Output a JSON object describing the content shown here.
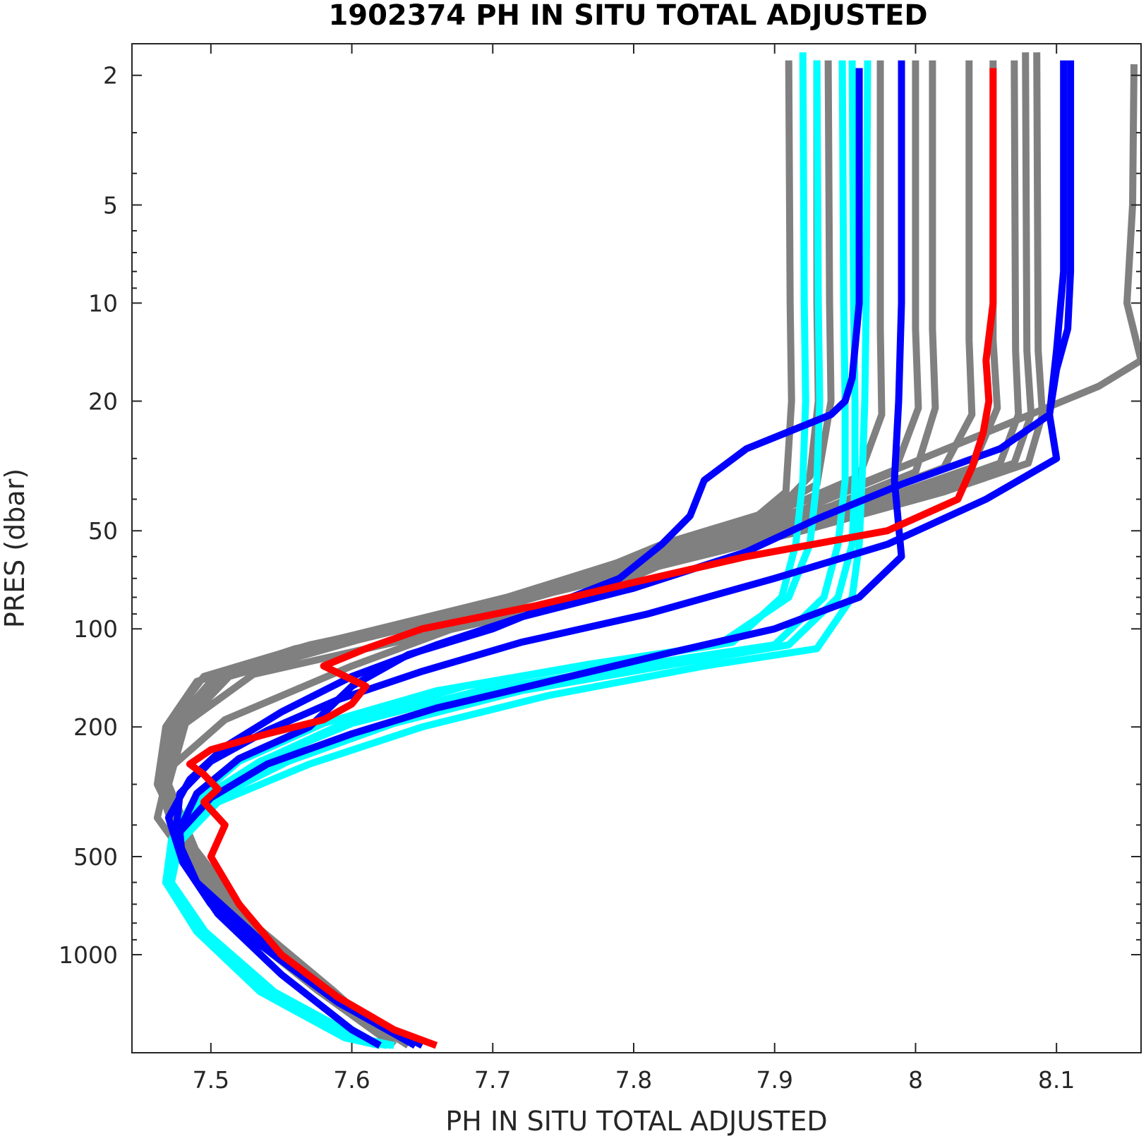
{
  "chart_data": {
    "type": "line",
    "title": "1902374  PH IN SITU TOTAL ADJUSTED",
    "xlabel": "PH IN SITU TOTAL ADJUSTED",
    "ylabel": "PRES (dbar)",
    "xlim": [
      7.444,
      8.16
    ],
    "ylim": [
      1.6,
      2000
    ],
    "y_scale": "log",
    "y_reversed": true,
    "grid": false,
    "x_ticks": [
      7.5,
      7.6,
      7.7,
      7.8,
      7.9,
      8.0,
      8.1
    ],
    "x_tick_labels": [
      "7.5",
      "7.6",
      "7.7",
      "7.8",
      "7.9",
      "8",
      "8.1"
    ],
    "y_ticks": [
      2,
      5,
      10,
      20,
      50,
      100,
      200,
      500,
      1000
    ],
    "y_tick_labels": [
      "2",
      "5",
      "10",
      "20",
      "50",
      "100",
      "200",
      "500",
      "1000"
    ],
    "colors": {
      "gray": "#808080",
      "cyan": "#00ffff",
      "blue": "#0000ff",
      "red": "#ff0000"
    },
    "series": [
      {
        "color": "gray",
        "x": [
          7.91,
          7.911,
          7.912,
          7.908,
          7.88,
          7.83,
          7.69,
          7.56,
          7.49,
          7.468,
          7.462,
          7.485,
          7.52,
          7.58,
          7.64
        ],
        "y": [
          1.8,
          10,
          20,
          38,
          48,
          60,
          90,
          115,
          145,
          200,
          300,
          480,
          800,
          1300,
          1900
        ]
      },
      {
        "color": "gray",
        "x": [
          7.938,
          7.939,
          7.94,
          7.93,
          7.89,
          7.82,
          7.7,
          7.57,
          7.495,
          7.47,
          7.463,
          7.478,
          7.515,
          7.575,
          7.63
        ],
        "y": [
          1.8,
          10,
          20,
          36,
          45,
          58,
          85,
          112,
          140,
          195,
          300,
          470,
          780,
          1280,
          1900
        ]
      },
      {
        "color": "gray",
        "x": [
          7.975,
          7.975,
          7.976,
          7.96,
          7.9,
          7.83,
          7.71,
          7.58,
          7.5,
          7.472,
          7.464,
          7.482,
          7.52,
          7.58,
          7.63
        ],
        "y": [
          1.8,
          12,
          22,
          34,
          44,
          55,
          80,
          110,
          145,
          200,
          305,
          470,
          790,
          1290,
          1900
        ]
      },
      {
        "color": "gray",
        "x": [
          8.012,
          8.012,
          8.014,
          8.0,
          7.94,
          7.86,
          7.72,
          7.59,
          7.505,
          7.474,
          7.466,
          7.484,
          7.522,
          7.582,
          7.63
        ],
        "y": [
          1.8,
          12,
          21,
          33,
          42,
          54,
          80,
          108,
          138,
          200,
          300,
          475,
          790,
          1290,
          1900
        ]
      },
      {
        "color": "gray",
        "x": [
          8.038,
          8.038,
          8.04,
          8.02,
          7.96,
          7.87,
          7.73,
          7.59,
          7.505,
          7.475,
          7.466,
          7.486,
          7.524,
          7.584,
          7.63
        ],
        "y": [
          1.8,
          13,
          22,
          32,
          40,
          52,
          78,
          108,
          138,
          200,
          300,
          475,
          790,
          1290,
          1900
        ]
      },
      {
        "color": "gray",
        "x": [
          8.055,
          8.055,
          8.058,
          8.04,
          7.975,
          7.88,
          7.735,
          7.595,
          7.508,
          7.476,
          7.467,
          7.486,
          7.525,
          7.585,
          7.63
        ],
        "y": [
          1.8,
          13,
          21,
          32,
          40,
          52,
          78,
          110,
          140,
          200,
          300,
          475,
          790,
          1290,
          1900
        ]
      },
      {
        "color": "gray",
        "x": [
          8.07,
          8.071,
          8.073,
          8.06,
          7.995,
          7.9,
          7.745,
          7.6,
          7.51,
          7.477,
          7.468,
          7.488,
          7.526,
          7.585,
          7.63
        ],
        "y": [
          1.8,
          14,
          22,
          31,
          39,
          50,
          75,
          108,
          140,
          200,
          300,
          475,
          790,
          1290,
          1900
        ]
      },
      {
        "color": "gray",
        "x": [
          8.078,
          8.079,
          8.082,
          8.07,
          8.01,
          7.91,
          7.75,
          7.6,
          7.512,
          7.478,
          7.469,
          7.488,
          7.527,
          7.586,
          7.63
        ],
        "y": [
          1.7,
          14,
          22,
          31,
          38,
          50,
          75,
          108,
          140,
          200,
          300,
          475,
          790,
          1290,
          1900
        ]
      },
      {
        "color": "gray",
        "x": [
          8.086,
          8.087,
          8.09,
          8.08,
          8.02,
          7.92,
          7.755,
          7.605,
          7.513,
          7.479,
          7.47,
          7.489,
          7.528,
          7.587,
          7.63
        ],
        "y": [
          1.7,
          14,
          22,
          31,
          38,
          50,
          75,
          108,
          140,
          200,
          300,
          475,
          790,
          1290,
          1900
        ]
      },
      {
        "color": "gray",
        "x": [
          8.155,
          8.154,
          8.15,
          8.16,
          8.13,
          8.06,
          7.96,
          7.82,
          7.7,
          7.6,
          7.51,
          7.47,
          7.462,
          7.482,
          7.52,
          7.58,
          7.63
        ],
        "y": [
          1.85,
          5,
          10,
          15,
          18,
          24,
          36,
          55,
          90,
          130,
          190,
          270,
          380,
          500,
          800,
          1300,
          1900
        ]
      },
      {
        "color": "gray",
        "x": [
          7.93,
          7.93,
          7.931,
          7.925,
          7.9,
          7.85,
          7.76,
          7.63,
          7.53,
          7.482,
          7.47,
          7.478,
          7.513,
          7.575,
          7.63
        ],
        "y": [
          1.8,
          10,
          20,
          34,
          44,
          56,
          82,
          110,
          138,
          195,
          300,
          470,
          780,
          1280,
          1900
        ]
      },
      {
        "color": "gray",
        "x": [
          8.0,
          8.0,
          8.002,
          7.985,
          7.92,
          7.84,
          7.71,
          7.59,
          7.505,
          7.473,
          7.465,
          7.484,
          7.522,
          7.582,
          7.63
        ],
        "y": [
          1.8,
          12,
          21,
          33,
          43,
          55,
          80,
          108,
          140,
          200,
          300,
          475,
          790,
          1290,
          1900
        ]
      },
      {
        "color": "cyan",
        "x": [
          7.92,
          7.921,
          7.922,
          7.92,
          7.915,
          7.905,
          7.87,
          7.79,
          7.68,
          7.6,
          7.54,
          7.495,
          7.475,
          7.468,
          7.49,
          7.535,
          7.595,
          7.62
        ],
        "y": [
          1.7,
          10,
          20,
          35,
          55,
          80,
          110,
          125,
          150,
          190,
          250,
          330,
          440,
          600,
          850,
          1300,
          1800,
          1900
        ]
      },
      {
        "color": "cyan",
        "x": [
          7.93,
          7.931,
          7.932,
          7.93,
          7.925,
          7.91,
          7.86,
          7.77,
          7.66,
          7.58,
          7.52,
          7.488,
          7.472,
          7.468,
          7.492,
          7.54,
          7.6,
          7.625
        ],
        "y": [
          1.8,
          10,
          20,
          35,
          55,
          80,
          112,
          128,
          155,
          195,
          255,
          335,
          445,
          600,
          850,
          1300,
          1800,
          1900
        ]
      },
      {
        "color": "cyan",
        "x": [
          7.948,
          7.949,
          7.95,
          7.95,
          7.945,
          7.935,
          7.9,
          7.81,
          7.69,
          7.6,
          7.535,
          7.492,
          7.474,
          7.47,
          7.495,
          7.542,
          7.602,
          7.628
        ],
        "y": [
          1.8,
          10,
          20,
          35,
          55,
          80,
          112,
          128,
          155,
          195,
          255,
          335,
          445,
          600,
          850,
          1300,
          1800,
          1900
        ]
      },
      {
        "color": "cyan",
        "x": [
          7.955,
          7.956,
          7.957,
          7.957,
          7.955,
          7.945,
          7.91,
          7.83,
          7.72,
          7.63,
          7.555,
          7.5,
          7.476,
          7.47,
          7.493,
          7.54,
          7.6,
          7.625
        ],
        "y": [
          1.8,
          10,
          20,
          35,
          55,
          80,
          112,
          128,
          155,
          195,
          255,
          335,
          445,
          600,
          850,
          1300,
          1800,
          1900
        ]
      },
      {
        "color": "cyan",
        "x": [
          7.966,
          7.965,
          7.964,
          7.962,
          7.96,
          7.955,
          7.93,
          7.85,
          7.74,
          7.65,
          7.57,
          7.505,
          7.478,
          7.472,
          7.496,
          7.545,
          7.605,
          7.63
        ],
        "y": [
          1.8,
          10,
          20,
          35,
          55,
          80,
          115,
          130,
          160,
          200,
          260,
          340,
          450,
          600,
          850,
          1300,
          1800,
          1900
        ]
      },
      {
        "color": "blue",
        "x": [
          7.96,
          7.96,
          7.955,
          7.95,
          7.94,
          7.88,
          7.85,
          7.84,
          7.82,
          7.79,
          7.74,
          7.7,
          7.64,
          7.6,
          7.57,
          7.52,
          7.49,
          7.475,
          7.49,
          7.53,
          7.59,
          7.645
        ],
        "y": [
          1.9,
          10,
          17,
          20,
          22,
          28,
          35,
          45,
          55,
          70,
          85,
          100,
          120,
          150,
          200,
          250,
          320,
          440,
          600,
          900,
          1400,
          1900
        ]
      },
      {
        "color": "blue",
        "x": [
          7.99,
          7.99,
          7.988,
          7.985,
          7.99,
          7.96,
          7.9,
          7.82,
          7.74,
          7.66,
          7.6,
          7.54,
          7.5,
          7.478,
          7.48,
          7.5,
          7.545,
          7.605,
          7.65
        ],
        "y": [
          1.8,
          10,
          20,
          35,
          60,
          80,
          100,
          120,
          145,
          175,
          210,
          260,
          330,
          420,
          520,
          700,
          1000,
          1500,
          1900
        ]
      },
      {
        "color": "blue",
        "x": [
          8.11,
          8.11,
          8.108,
          8.1,
          8.095,
          8.1,
          8.05,
          7.98,
          7.9,
          7.81,
          7.72,
          7.65,
          7.59,
          7.54,
          7.5,
          7.478,
          7.475,
          7.49,
          7.535,
          7.595,
          7.645
        ],
        "y": [
          1.8,
          8,
          12,
          16,
          22,
          30,
          40,
          55,
          70,
          90,
          110,
          135,
          165,
          205,
          255,
          320,
          430,
          600,
          900,
          1400,
          1900
        ]
      },
      {
        "color": "blue",
        "x": [
          8.105,
          8.105,
          8.1,
          8.095,
          8.06,
          7.99,
          7.93,
          7.88,
          7.8,
          7.72,
          7.66,
          7.6,
          7.55,
          7.51,
          7.485,
          7.47,
          7.48,
          7.505,
          7.55,
          7.6,
          7.62
        ],
        "y": [
          1.8,
          8,
          14,
          22,
          28,
          36,
          46,
          58,
          75,
          92,
          112,
          140,
          180,
          230,
          290,
          380,
          520,
          750,
          1150,
          1700,
          1900
        ]
      },
      {
        "color": "red",
        "x": [
          8.055,
          8.055,
          8.05,
          8.052,
          8.048,
          8.04,
          8.03,
          7.98,
          7.88,
          7.8,
          7.73,
          7.65,
          7.61,
          7.58,
          7.61,
          7.6,
          7.58,
          7.54,
          7.5,
          7.485,
          7.495,
          7.505,
          7.495,
          7.51,
          7.5,
          7.52,
          7.55,
          7.59,
          7.63,
          7.66
        ],
        "y": [
          1.9,
          10,
          15,
          20,
          25,
          32,
          40,
          50,
          60,
          72,
          85,
          100,
          115,
          130,
          150,
          170,
          190,
          210,
          235,
          260,
          280,
          310,
          340,
          400,
          500,
          700,
          1000,
          1350,
          1700,
          1900
        ]
      }
    ]
  }
}
